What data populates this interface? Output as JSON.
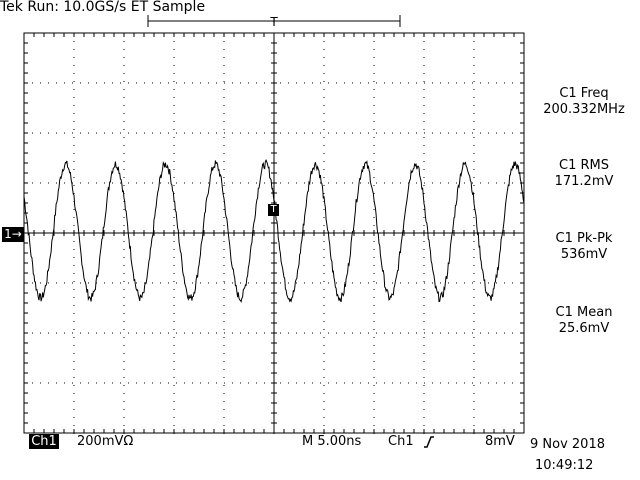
{
  "header": {
    "status": "Tek Run: 10.0GS/s ET Sample"
  },
  "measurements": [
    {
      "label": "C1 Freq",
      "value": "200.332MHz"
    },
    {
      "label": "C1 RMS",
      "value": "171.2mV"
    },
    {
      "label": "C1 Pk-Pk",
      "value": "536mV"
    },
    {
      "label": "C1 Mean",
      "value": "25.6mV"
    }
  ],
  "footer": {
    "channel": "Ch1",
    "volts_per_div": "200mVΩ",
    "timebase": "M 5.00ns",
    "trigger_source": "Ch1",
    "trigger_slope_icon": "rising-edge-icon",
    "trigger_level": "8mV",
    "date": "9 Nov 2018",
    "time": "10:49:12"
  },
  "markers": {
    "ground": "1→",
    "trigger": "T",
    "trigger_top": "T"
  },
  "chart_data": {
    "type": "line",
    "series": [
      {
        "frequency_mhz": 200.332,
        "pk_pk_mv": 536,
        "mean_mv": 25.6,
        "rms_mv": 171.2
      }
    ],
    "xlim_ns": [
      0,
      50
    ],
    "ylim_mv": [
      -800,
      800
    ],
    "grid": true,
    "divisions": {
      "x": 10,
      "y": 8
    }
  }
}
